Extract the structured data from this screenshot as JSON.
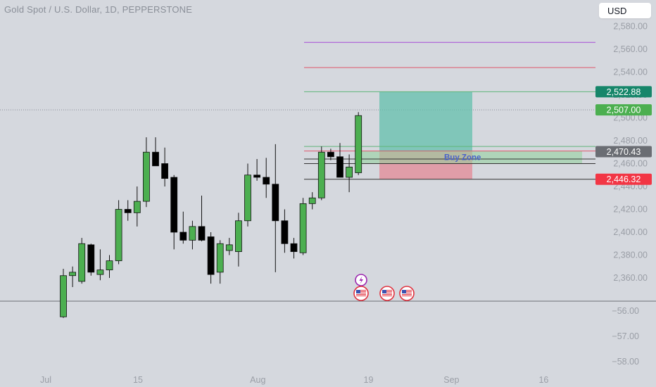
{
  "header": {
    "symbol_title": "Gold Spot / U.S. Dollar, 1D, PEPPERSTONE",
    "currency": "USD"
  },
  "chart_data": {
    "type": "candlestick",
    "price_axis": {
      "range": [
        2340,
        2590
      ],
      "ticks": [
        2360,
        2380,
        2400,
        2420,
        2440,
        2460,
        2480,
        2500,
        2520,
        2540,
        2560,
        2580
      ],
      "tick_labels": [
        "2,360.00",
        "2,380.00",
        "2,400.00",
        "2,420.00",
        "2,440.00",
        "2,460.00",
        "2,480.00",
        "2,500.00",
        "2,520.00",
        "2,540.00",
        "2,560.00",
        "2,580.00"
      ]
    },
    "indicator_axis": {
      "ticks": [
        -56,
        -57,
        -58
      ],
      "tick_labels": [
        "−56.00",
        "−57.00",
        "−58.00"
      ]
    },
    "time_axis": {
      "labels": [
        {
          "text": "Jul",
          "index": 0
        },
        {
          "text": "15",
          "index": 10
        },
        {
          "text": "Aug",
          "index": 23
        },
        {
          "text": "19",
          "index": 35
        },
        {
          "text": "Sep",
          "index": 44
        },
        {
          "text": "16",
          "index": 54
        }
      ]
    },
    "candles": [
      {
        "o": 2326,
        "h": 2368,
        "l": 2325,
        "c": 2362
      },
      {
        "o": 2362,
        "h": 2370,
        "l": 2352,
        "c": 2365
      },
      {
        "o": 2357,
        "h": 2395,
        "l": 2355,
        "c": 2390
      },
      {
        "o": 2389,
        "h": 2390,
        "l": 2362,
        "c": 2365
      },
      {
        "o": 2363,
        "h": 2385,
        "l": 2358,
        "c": 2367
      },
      {
        "o": 2367,
        "h": 2380,
        "l": 2360,
        "c": 2375
      },
      {
        "o": 2375,
        "h": 2428,
        "l": 2372,
        "c": 2420
      },
      {
        "o": 2420,
        "h": 2428,
        "l": 2410,
        "c": 2417
      },
      {
        "o": 2417,
        "h": 2440,
        "l": 2405,
        "c": 2427
      },
      {
        "o": 2427,
        "h": 2483,
        "l": 2422,
        "c": 2470
      },
      {
        "o": 2470,
        "h": 2483,
        "l": 2458,
        "c": 2458
      },
      {
        "o": 2460,
        "h": 2474,
        "l": 2440,
        "c": 2447
      },
      {
        "o": 2448,
        "h": 2450,
        "l": 2385,
        "c": 2400
      },
      {
        "o": 2400,
        "h": 2418,
        "l": 2390,
        "c": 2393
      },
      {
        "o": 2393,
        "h": 2410,
        "l": 2385,
        "c": 2405
      },
      {
        "o": 2405,
        "h": 2432,
        "l": 2392,
        "c": 2393
      },
      {
        "o": 2396,
        "h": 2400,
        "l": 2355,
        "c": 2363
      },
      {
        "o": 2365,
        "h": 2393,
        "l": 2355,
        "c": 2390
      },
      {
        "o": 2384,
        "h": 2395,
        "l": 2380,
        "c": 2389
      },
      {
        "o": 2383,
        "h": 2417,
        "l": 2370,
        "c": 2410
      },
      {
        "o": 2410,
        "h": 2460,
        "l": 2405,
        "c": 2450
      },
      {
        "o": 2450,
        "h": 2464,
        "l": 2445,
        "c": 2448
      },
      {
        "o": 2448,
        "h": 2465,
        "l": 2430,
        "c": 2442
      },
      {
        "o": 2442,
        "h": 2477,
        "l": 2365,
        "c": 2410
      },
      {
        "o": 2410,
        "h": 2420,
        "l": 2382,
        "c": 2390
      },
      {
        "o": 2390,
        "h": 2395,
        "l": 2377,
        "c": 2383
      },
      {
        "o": 2382,
        "h": 2430,
        "l": 2380,
        "c": 2425
      },
      {
        "o": 2425,
        "h": 2435,
        "l": 2420,
        "c": 2430
      },
      {
        "o": 2430,
        "h": 2475,
        "l": 2428,
        "c": 2470
      },
      {
        "o": 2470,
        "h": 2473,
        "l": 2463,
        "c": 2466
      },
      {
        "o": 2466,
        "h": 2478,
        "l": 2448,
        "c": 2448
      },
      {
        "o": 2448,
        "h": 2468,
        "l": 2435,
        "c": 2457
      },
      {
        "o": 2452,
        "h": 2505,
        "l": 2450,
        "c": 2502
      }
    ],
    "annotations": {
      "buy_zone_label": "Buy Zone",
      "buy_zone": [
        2460,
        2471
      ],
      "target_price": 2522.88,
      "entry_price": 2470.43,
      "stop_price": 2446.32,
      "horizontal_lines": [
        {
          "price": 2566,
          "color": "#a64ad6"
        },
        {
          "price": 2544,
          "color": "#e0566b"
        },
        {
          "price": 2522.88,
          "color": "#5fb57a"
        },
        {
          "price": 2475,
          "color": "#5fb57a"
        },
        {
          "price": 2471,
          "color": "#e0566b"
        },
        {
          "price": 2464,
          "color": "#333333"
        },
        {
          "price": 2460,
          "color": "#333333"
        },
        {
          "price": 2446.32,
          "color": "#333333"
        }
      ]
    },
    "price_tags": [
      {
        "text": "2,522.88",
        "price": 2522.88,
        "color": "#16866a"
      },
      {
        "text": "2,507.00",
        "price": 2507.0,
        "color": "#4caf50"
      },
      {
        "text": "2,470.43",
        "price": 2470.43,
        "color": "#6a6d73"
      },
      {
        "text": "2,446.32",
        "price": 2446.32,
        "color": "#f23645"
      }
    ],
    "last_price": 2507.0,
    "colors": {
      "up": "#4caf50",
      "down": "#000000",
      "profit_zone": "#5bbfa9",
      "loss_zone": "#e38a95",
      "axis_text": "#9a9ea6"
    },
    "event_icons": [
      "lightning-icon",
      "us-flag-icon",
      "us-flag-icon",
      "us-flag-icon"
    ]
  }
}
